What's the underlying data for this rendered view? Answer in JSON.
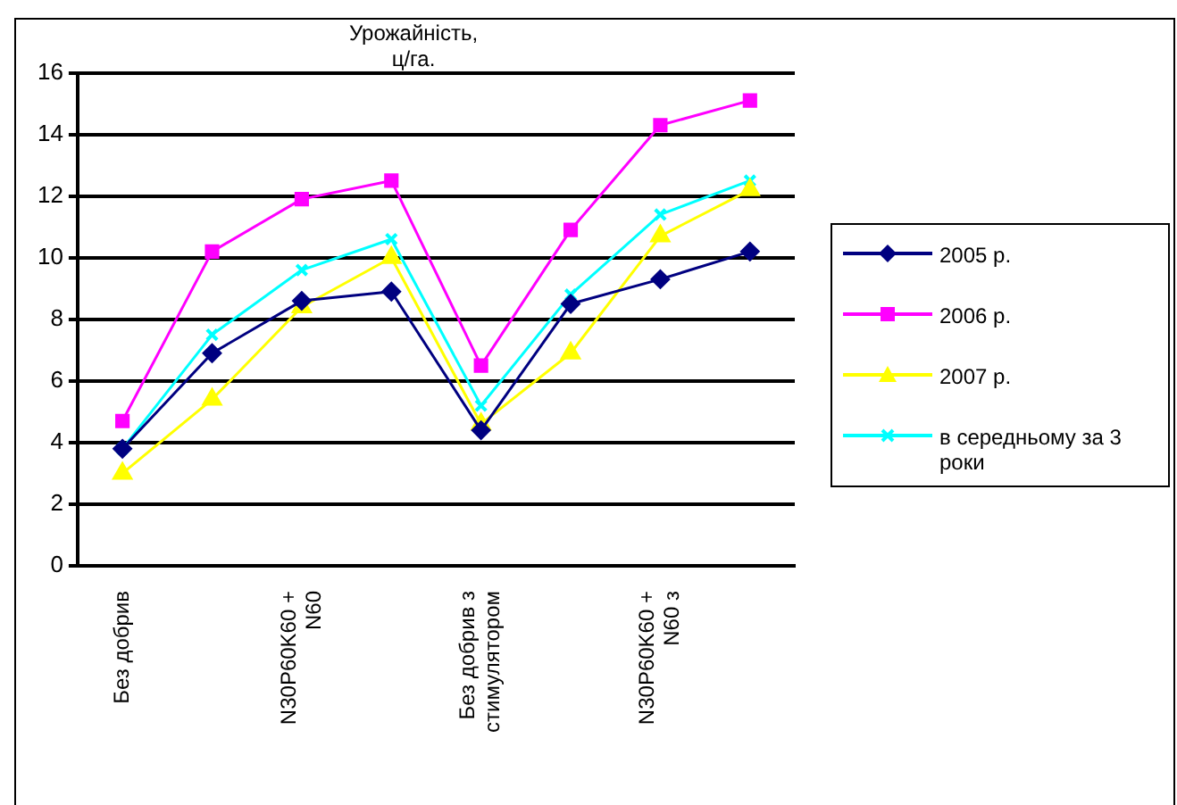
{
  "chart_data": {
    "type": "line",
    "title": "Урожайність, ц/га.",
    "categories": [
      "Без добрив",
      null,
      "N30P60K60 + N60",
      null,
      "Без добрив з стимулятором",
      null,
      "N30P60K60 + N60 з",
      null
    ],
    "series": [
      {
        "name": "2005 р.",
        "color": "#000080",
        "marker": "diamond",
        "values": [
          3.8,
          6.9,
          8.6,
          8.9,
          4.4,
          8.5,
          9.3,
          10.2
        ]
      },
      {
        "name": "2006 р.",
        "color": "#ff00ff",
        "marker": "square",
        "values": [
          4.7,
          10.2,
          11.9,
          12.5,
          6.5,
          10.9,
          14.3,
          15.1
        ]
      },
      {
        "name": "2007 р.",
        "color": "#ffff00",
        "marker": "triangle",
        "values": [
          3.0,
          5.4,
          8.4,
          10.0,
          4.6,
          6.9,
          10.7,
          12.2
        ]
      },
      {
        "name": "в середньому за 3 роки",
        "color": "#00ffff",
        "marker": "cross",
        "values": [
          3.8,
          7.5,
          9.6,
          10.6,
          5.2,
          8.8,
          11.4,
          12.5
        ]
      }
    ],
    "ylim": [
      0,
      16
    ],
    "yticks": [
      0,
      2,
      4,
      6,
      8,
      10,
      12,
      14,
      16
    ],
    "grid": "y",
    "legend": "right"
  }
}
